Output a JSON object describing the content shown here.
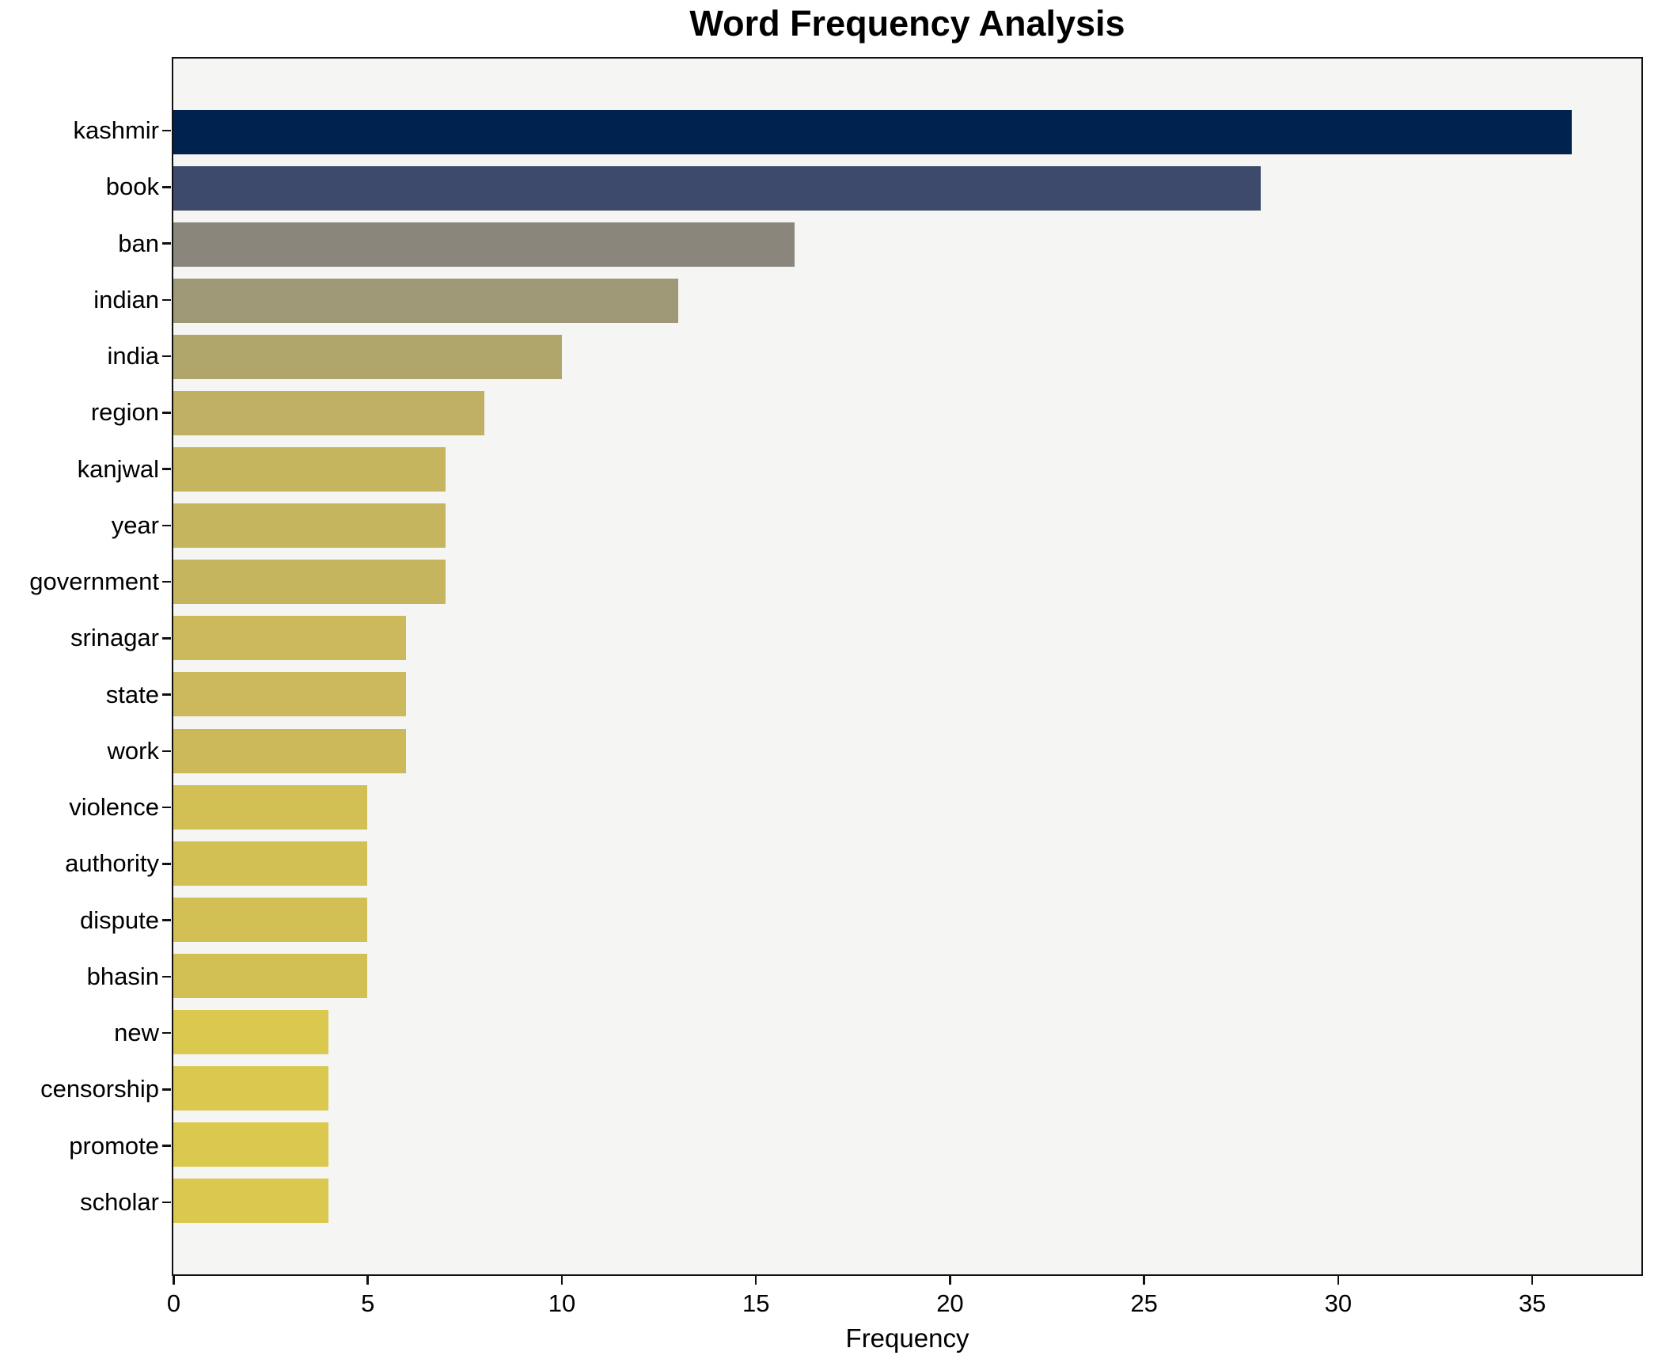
{
  "chart_data": {
    "type": "bar",
    "orientation": "horizontal",
    "title": "Word Frequency Analysis",
    "xlabel": "Frequency",
    "ylabel": "",
    "categories": [
      "kashmir",
      "book",
      "ban",
      "indian",
      "india",
      "region",
      "kanjwal",
      "year",
      "government",
      "srinagar",
      "state",
      "work",
      "violence",
      "authority",
      "dispute",
      "bhasin",
      "new",
      "censorship",
      "promote",
      "scholar"
    ],
    "values": [
      36,
      28,
      16,
      13,
      10,
      8,
      7,
      7,
      7,
      6,
      6,
      6,
      5,
      5,
      5,
      5,
      4,
      4,
      4,
      4
    ],
    "bar_colors": [
      "#00224e",
      "#3e4a6c",
      "#8a867c",
      "#9f9877",
      "#b0a56b",
      "#bfb064",
      "#c6b55f",
      "#c6b55f",
      "#c6b55f",
      "#cbb95b",
      "#cbb95b",
      "#ccba5a",
      "#d2c055",
      "#d2c055",
      "#d3c054",
      "#d3c054",
      "#dac84f",
      "#dac84f",
      "#dbc84e",
      "#dbc84e"
    ],
    "xlim": [
      0,
      37.8
    ],
    "xticks": [
      0,
      5,
      10,
      15,
      20,
      25,
      30,
      35
    ],
    "grid": false,
    "legend_position": "none",
    "plot_background": "#f5f5f3",
    "figure_background": "#ffffff",
    "axis_color": "#111111",
    "text_color": "#000000"
  }
}
